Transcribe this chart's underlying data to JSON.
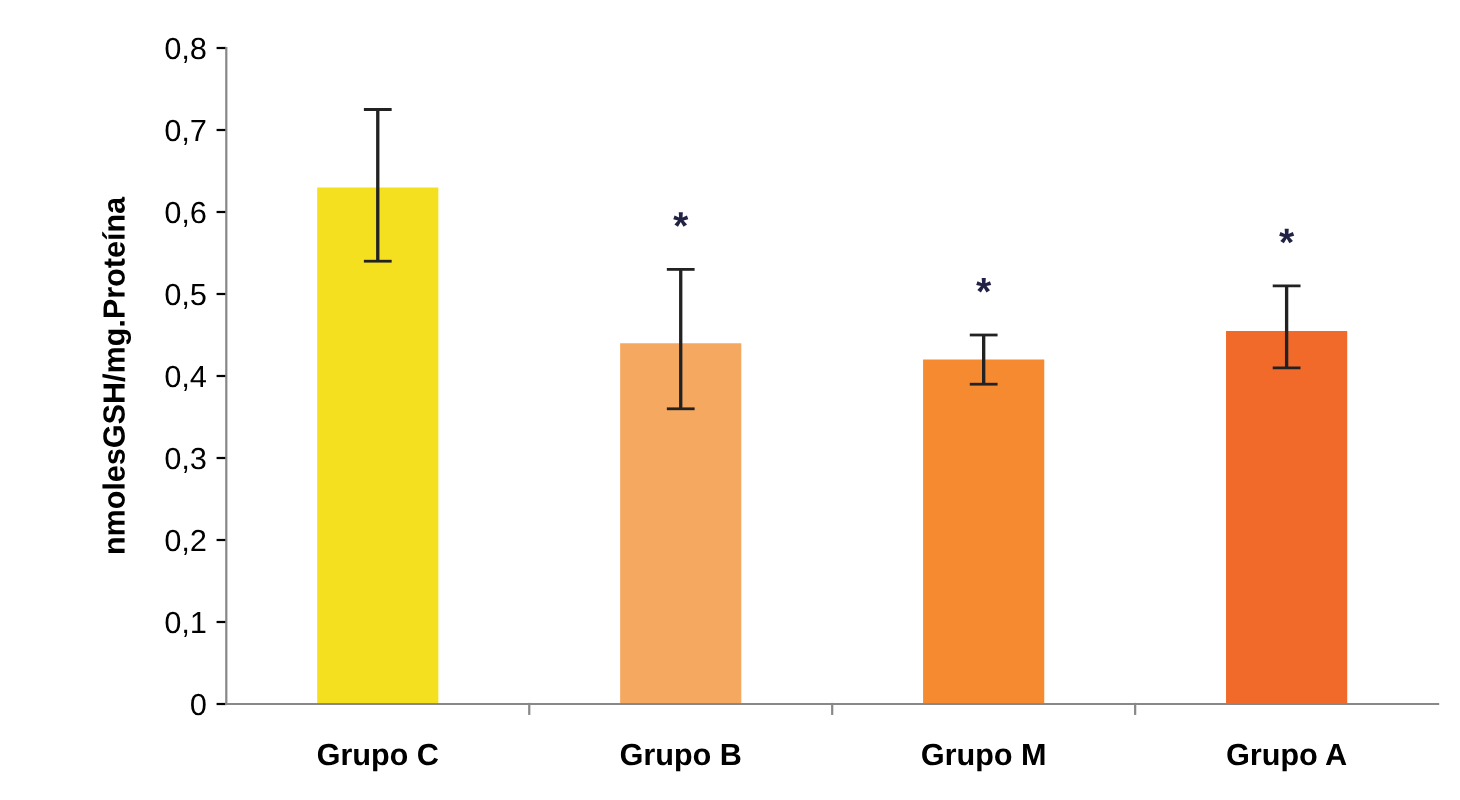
{
  "chart_data": {
    "type": "bar",
    "ylabel": "nmolesGSH/mg.Proteína",
    "categories": [
      "Grupo C",
      "Grupo B",
      "Grupo M",
      "Grupo A"
    ],
    "values": [
      0.63,
      0.44,
      0.42,
      0.455
    ],
    "colors": [
      "#f5e020",
      "#f4a860",
      "#f58a30",
      "#f26a2a"
    ],
    "errors": [
      [
        0.54,
        0.725
      ],
      [
        0.36,
        0.53
      ],
      [
        0.39,
        0.45
      ],
      [
        0.41,
        0.51
      ]
    ],
    "annotations": [
      "*",
      "*",
      "*"
    ],
    "ylim": [
      0,
      0.8
    ],
    "yticks": [
      0,
      {
        "value": 0.1,
        "label": "0,1"
      },
      {
        "value": 0.2,
        "label": "0,2"
      },
      {
        "value": 0.3,
        "label": "0,3"
      },
      {
        "value": 0.4,
        "label": "0,4"
      },
      {
        "value": 0.5,
        "label": "0,5"
      },
      {
        "value": 0.6,
        "label": "0,6"
      },
      {
        "value": 0.7,
        "label": "0,7"
      },
      {
        "value": 0.8,
        "label": "0,8"
      }
    ],
    "grid": false
  }
}
